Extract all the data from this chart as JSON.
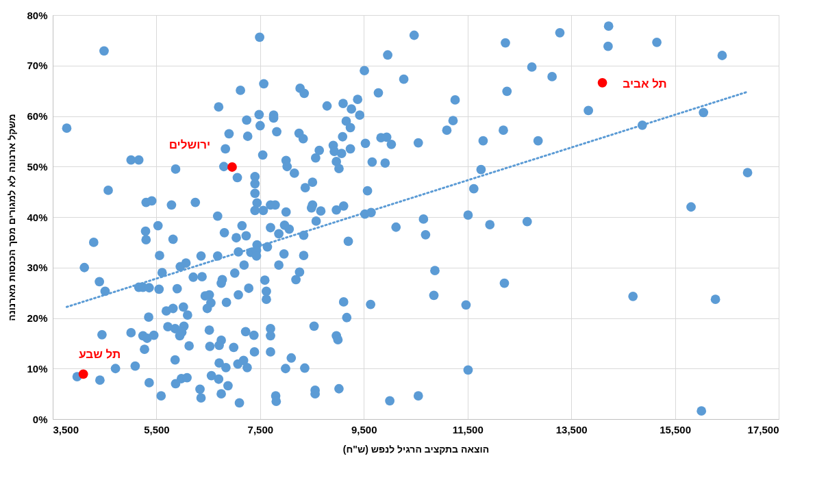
{
  "chart_data": {
    "type": "scatter",
    "xlabel": "הוצאה בתקציב הרגיל לנפש (ש\"ח)",
    "ylabel": "משקל ארנונה לא למגורים מסך הכנסות מארנונה",
    "xlim": [
      3500,
      17500
    ],
    "xticks": [
      {
        "value": 3500,
        "label": "3,500"
      },
      {
        "value": 5500,
        "label": "5,500"
      },
      {
        "value": 7500,
        "label": "7,500"
      },
      {
        "value": 9500,
        "label": "9,500"
      },
      {
        "value": 11500,
        "label": "11,500"
      },
      {
        "value": 13500,
        "label": "13,500"
      },
      {
        "value": 15500,
        "label": "15,500"
      },
      {
        "value": 17500,
        "label": "17,500"
      }
    ],
    "ylim": [
      0,
      80
    ],
    "yticks": [
      {
        "value": 0,
        "label": "0%"
      },
      {
        "value": 10,
        "label": "10%"
      },
      {
        "value": 20,
        "label": "20%"
      },
      {
        "value": 30,
        "label": "30%"
      },
      {
        "value": 40,
        "label": "40%"
      },
      {
        "value": 50,
        "label": "50%"
      },
      {
        "value": 60,
        "label": "60%"
      },
      {
        "value": 70,
        "label": "70%"
      },
      {
        "value": 80,
        "label": "80%"
      }
    ],
    "grid": true,
    "series": [
      {
        "marker": "circle",
        "color": "#5b9bd5",
        "x": [
          4490,
          7490,
          7570,
          7120,
          6700,
          7480,
          7760,
          7760,
          7240,
          7500,
          7820,
          3770,
          6900,
          7260,
          6830,
          7550,
          5010,
          5160,
          5870,
          6800,
          8000,
          8020,
          8160,
          7060,
          7400,
          7400,
          7400,
          7440,
          7400,
          7560,
          4570,
          5300,
          5410,
          5790,
          6250,
          7700,
          7790,
          8000,
          6680,
          5530,
          5290,
          5300,
          5820,
          4290,
          7150,
          6810,
          7040,
          7230,
          7700,
          7970,
          8060,
          7860,
          7440,
          7640,
          7080,
          7320,
          7430,
          7430,
          7960,
          5560,
          6360,
          6680,
          4110,
          5960,
          6070,
          7190,
          7860,
          8260,
          8190,
          5610,
          6210,
          6380,
          7010,
          6770,
          6750,
          7590,
          4400,
          4510,
          5160,
          5240,
          5360,
          5550,
          5900,
          7280,
          7620,
          7620,
          6440,
          6520,
          6550,
          6480,
          7080,
          6850,
          5690,
          5820,
          6020,
          6100,
          5350,
          5720,
          5860,
          6030,
          5990,
          5950,
          4450,
          5010,
          5240,
          5320,
          5450,
          6520,
          6750,
          6710,
          6530,
          6990,
          7220,
          7380,
          7700,
          7700,
          6130,
          5270,
          7390,
          7700,
          8100,
          5860,
          6710,
          6840,
          7070,
          7180,
          7250,
          7990,
          5090,
          4710,
          3970,
          4410,
          5360,
          5870,
          5980,
          6090,
          6560,
          6700,
          6880,
          6340,
          6360,
          6750,
          5590,
          7800,
          7810,
          7100,
          10470,
          12230,
          9960,
          9510,
          12740,
          10270,
          12260,
          9780,
          11260,
          8270,
          8350,
          8790,
          9100,
          9260,
          9380,
          9420,
          9160,
          9240,
          8250,
          8330,
          9090,
          8910,
          8640,
          8570,
          8930,
          9070,
          9240,
          9530,
          9830,
          9940,
          10030,
          10550,
          11100,
          11220,
          11800,
          12190,
          12860,
          8970,
          9020,
          9660,
          9910,
          8510,
          8370,
          11760,
          11620,
          9570,
          8510,
          8490,
          8670,
          8970,
          9110,
          9520,
          9640,
          10650,
          11510,
          8580,
          12650,
          8340,
          9200,
          8340,
          10120,
          10690,
          11930,
          10870,
          12210,
          10850,
          11470,
          9110,
          9630,
          9170,
          8540,
          8970,
          9000,
          8360,
          11510,
          8560,
          8560,
          9020,
          10000,
          10550,
          13280,
          14220,
          14210,
          15150,
          16410,
          13130,
          13830,
          14870,
          16050,
          16900,
          15810,
          14690,
          16280,
          16010
        ],
        "values": [
          72.9,
          75.6,
          66.4,
          65.1,
          61.8,
          60.3,
          60.2,
          59.6,
          59.2,
          58.1,
          56.9,
          57.6,
          56.5,
          56.0,
          53.5,
          52.3,
          51.3,
          51.3,
          49.5,
          50.0,
          51.2,
          50.0,
          48.7,
          47.8,
          48.0,
          46.6,
          44.7,
          42.8,
          41.3,
          41.3,
          45.3,
          42.9,
          43.2,
          42.4,
          42.9,
          42.4,
          42.4,
          41.0,
          40.2,
          38.3,
          37.2,
          35.5,
          35.6,
          35.0,
          38.3,
          36.9,
          35.9,
          36.3,
          37.9,
          38.4,
          37.6,
          36.7,
          34.5,
          34.1,
          33.1,
          33.0,
          33.4,
          32.3,
          32.7,
          32.4,
          32.3,
          32.3,
          30.0,
          30.2,
          30.9,
          30.5,
          30.5,
          29.1,
          27.6,
          29.0,
          28.1,
          28.2,
          28.9,
          27.6,
          26.9,
          27.5,
          27.2,
          25.3,
          26.1,
          26.1,
          26.0,
          25.7,
          25.8,
          25.9,
          25.3,
          23.7,
          24.4,
          24.6,
          23.0,
          21.9,
          24.6,
          23.1,
          21.4,
          21.9,
          22.2,
          20.6,
          20.2,
          18.3,
          17.9,
          18.4,
          17.2,
          16.5,
          16.7,
          17.1,
          16.5,
          16.0,
          16.6,
          17.6,
          15.6,
          14.6,
          14.4,
          14.2,
          17.3,
          16.6,
          17.9,
          16.5,
          14.5,
          13.8,
          13.3,
          13.3,
          12.1,
          11.7,
          11.1,
          10.2,
          10.9,
          11.6,
          10.2,
          10.0,
          10.5,
          10.0,
          8.4,
          7.7,
          7.2,
          7.0,
          8.0,
          8.2,
          8.6,
          7.9,
          6.6,
          5.9,
          4.2,
          5.0,
          4.6,
          4.6,
          3.5,
          3.2,
          76.0,
          74.5,
          72.1,
          69.0,
          69.7,
          67.3,
          64.9,
          64.6,
          63.2,
          65.5,
          64.5,
          62.0,
          62.5,
          61.4,
          63.3,
          60.2,
          59.0,
          57.7,
          56.6,
          55.5,
          55.9,
          54.2,
          53.2,
          51.7,
          53.0,
          52.6,
          53.5,
          54.6,
          55.7,
          55.8,
          54.4,
          54.7,
          57.2,
          59.1,
          55.1,
          57.2,
          55.1,
          51.0,
          49.6,
          50.9,
          50.7,
          46.9,
          45.8,
          49.4,
          45.6,
          45.2,
          42.4,
          41.8,
          41.2,
          41.4,
          42.2,
          40.6,
          40.9,
          39.6,
          40.4,
          39.2,
          39.1,
          36.4,
          35.2,
          32.4,
          38.0,
          36.5,
          38.5,
          29.4,
          26.9,
          24.5,
          22.6,
          23.2,
          22.7,
          20.1,
          18.4,
          16.5,
          15.7,
          10.1,
          9.7,
          5.7,
          5.0,
          6.0,
          3.6,
          4.6,
          76.5,
          77.8,
          73.8,
          74.6,
          72.0,
          67.8,
          61.1,
          58.2,
          60.7,
          48.8,
          42.0,
          24.3,
          23.7,
          1.6
        ]
      },
      {
        "type": "line",
        "color": "#5b9bd5",
        "line_style": "dotted",
        "marker": "none",
        "x": [
          3770,
          16900
        ],
        "values": [
          22.2,
          64.8
        ]
      },
      {
        "type": "scatter",
        "marker": "circle",
        "color": "#ff0000",
        "x": [
          6960,
          4090,
          14100
        ],
        "values": [
          49.9,
          8.9,
          66.6
        ]
      }
    ],
    "annotations": [
      {
        "text": "ירושלים",
        "x": 6960,
        "y": 49.9
      },
      {
        "text": "תל שבע",
        "x": 4090,
        "y": 8.9
      },
      {
        "text": "תל אביב",
        "x": 14100,
        "y": 66.6
      }
    ]
  }
}
